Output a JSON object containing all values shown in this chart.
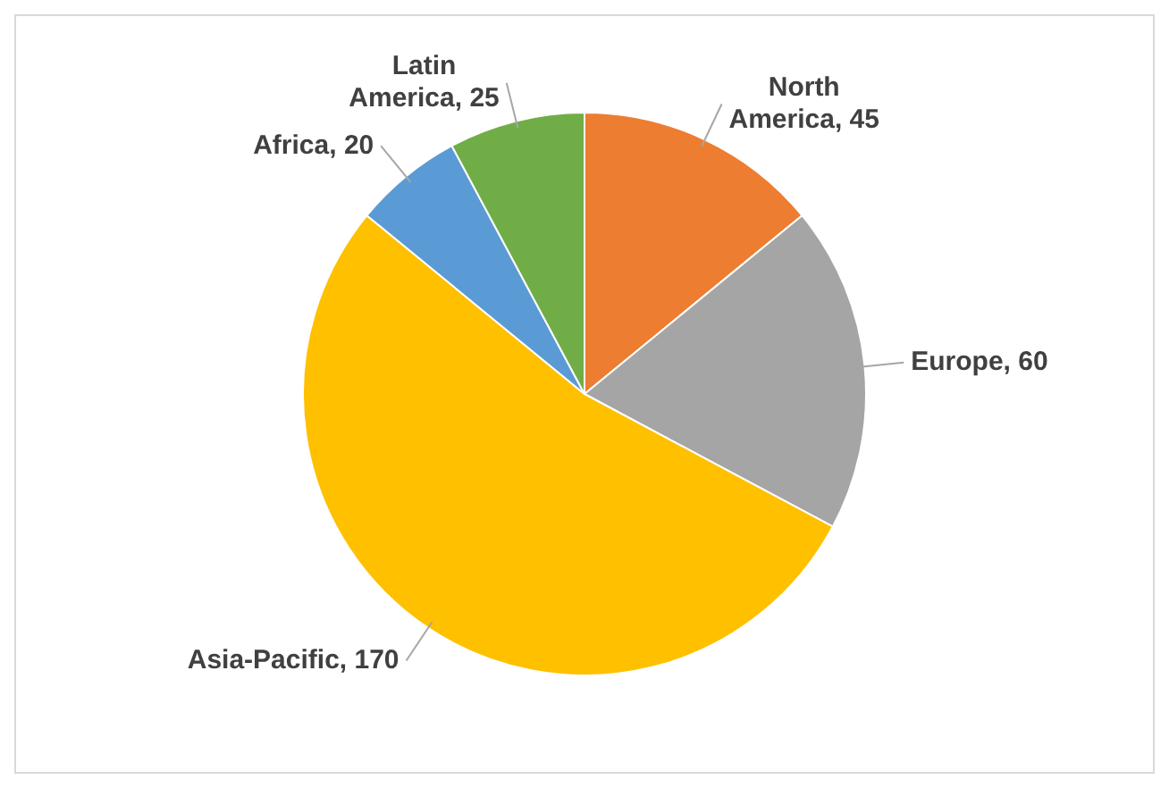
{
  "chart_data": {
    "type": "pie",
    "categories": [
      "North America",
      "Europe",
      "Asia-Pacific",
      "Africa",
      "Latin America"
    ],
    "values": [
      45,
      60,
      170,
      20,
      25
    ],
    "colors": [
      "#ed7d31",
      "#a5a5a5",
      "#ffc000",
      "#5b9bd5",
      "#70ad47"
    ],
    "value_labels": [
      ", 45",
      ", 60",
      ", 170",
      ", 20",
      ", 25"
    ]
  }
}
